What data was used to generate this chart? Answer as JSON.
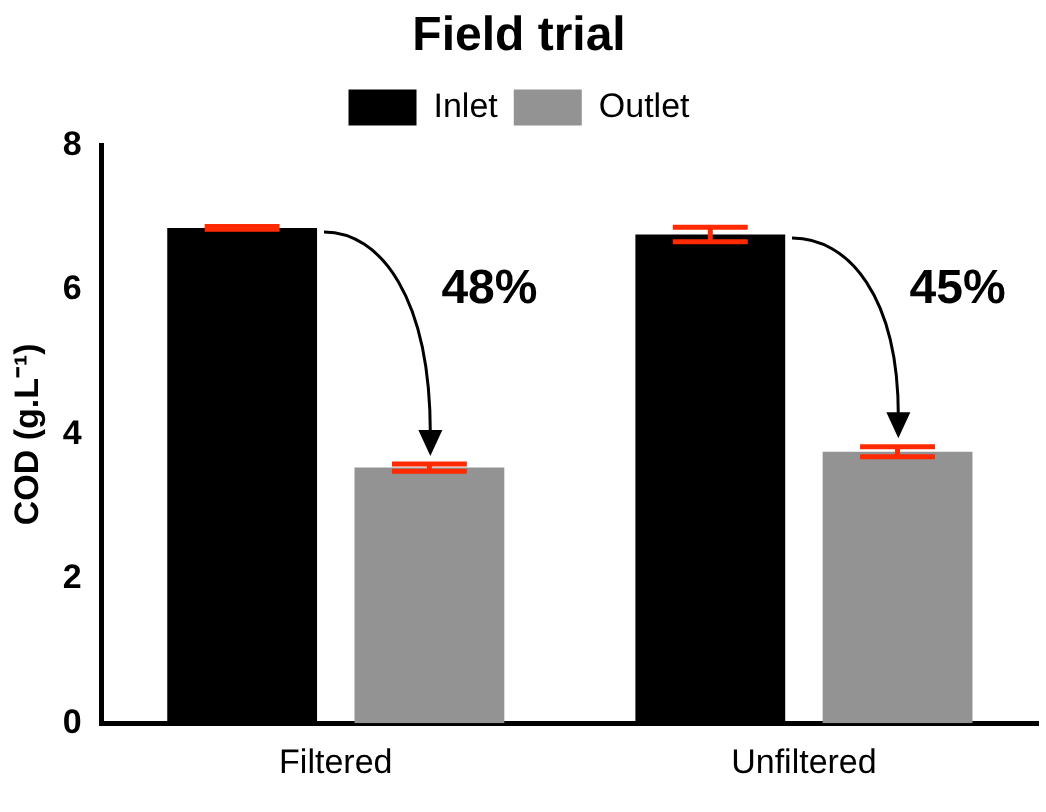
{
  "chart_data": {
    "type": "bar",
    "title": "Field trial",
    "ylabel": "COD (g.L⁻¹)",
    "categories": [
      "Filtered",
      "Unfiltered"
    ],
    "series": [
      {
        "name": "Inlet",
        "color": "#000000",
        "values": [
          6.86,
          6.77
        ],
        "errors": [
          0.02,
          0.1
        ]
      },
      {
        "name": "Outlet",
        "color": "#939393",
        "values": [
          3.54,
          3.76
        ],
        "errors": [
          0.05,
          0.07
        ]
      }
    ],
    "ylim": [
      0,
      8
    ],
    "yticks": [
      0,
      2,
      4,
      6,
      8
    ],
    "grid": false,
    "legend": "top",
    "annotations": [
      "48%",
      "45%"
    ]
  }
}
